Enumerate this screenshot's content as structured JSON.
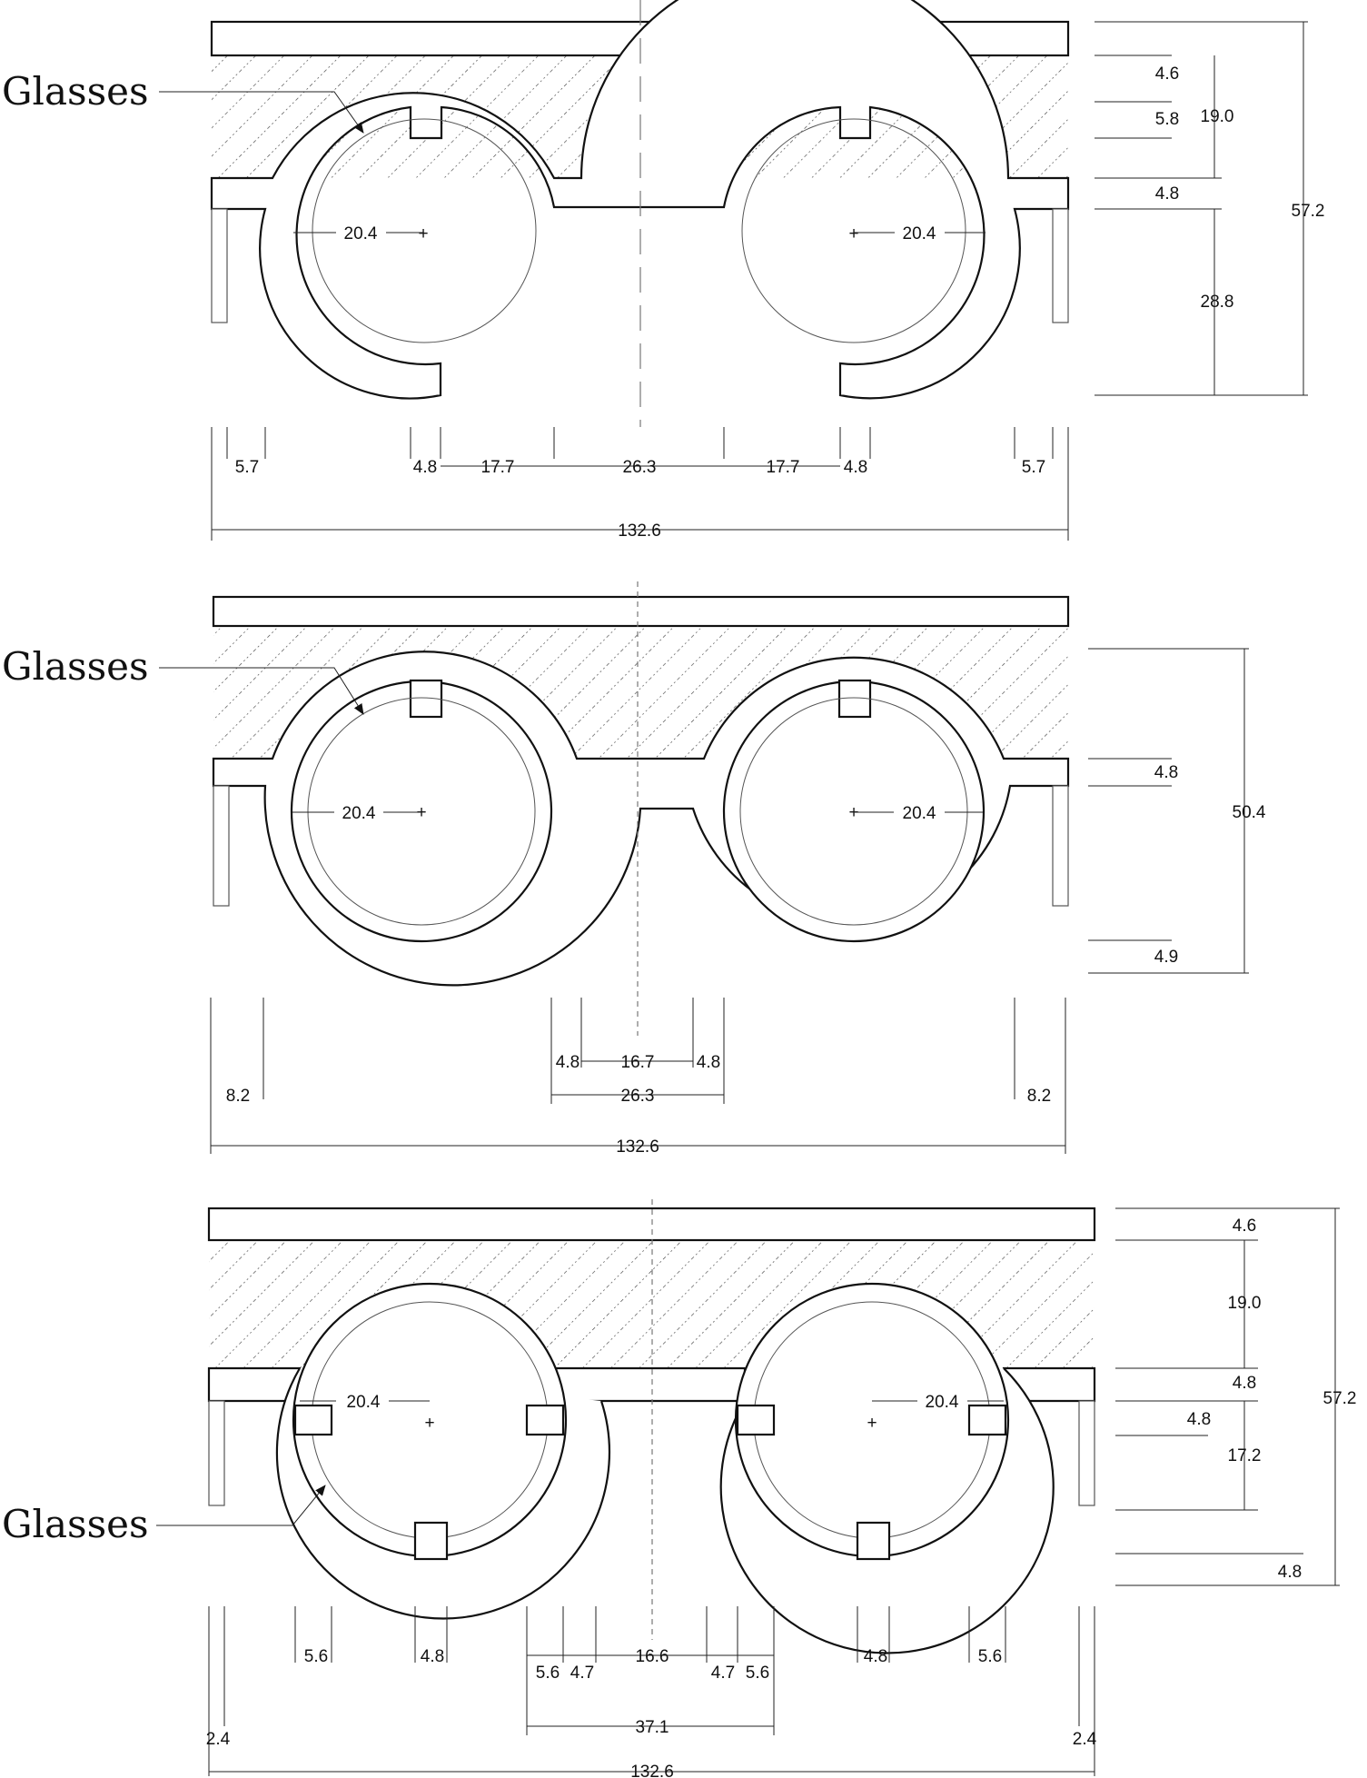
{
  "label": "Glasses",
  "views": [
    {
      "label": "Glasses",
      "horizontal_dimensions": [
        "5.7",
        "4.8",
        "17.7",
        "26.3",
        "17.7",
        "4.8",
        "5.7"
      ],
      "lens_radius": [
        "20.4",
        "20.4"
      ],
      "vertical_dimensions": [
        "4.6",
        "5.8",
        "19.0",
        "4.8",
        "28.8",
        "57.2"
      ],
      "overall_width": "132.6"
    },
    {
      "label": "Glasses",
      "horizontal_dimensions": [
        "4.8",
        "16.7",
        "4.8",
        "26.3",
        "8.2",
        "8.2"
      ],
      "lens_radius": [
        "20.4",
        "20.4"
      ],
      "vertical_dimensions": [
        "4.8",
        "50.4",
        "4.9"
      ],
      "overall_width": "132.6"
    },
    {
      "label": "Glasses",
      "horizontal_dimensions": [
        "5.6",
        "4.8",
        "5.6",
        "4.7",
        "16.6",
        "4.7",
        "5.6",
        "4.8",
        "5.6",
        "37.1",
        "2.4",
        "2.4"
      ],
      "lens_radius": [
        "20.4",
        "20.4"
      ],
      "vertical_dimensions": [
        "4.6",
        "19.0",
        "4.8",
        "4.8",
        "17.2",
        "4.8",
        "57.2"
      ],
      "overall_width": "132.6"
    }
  ]
}
